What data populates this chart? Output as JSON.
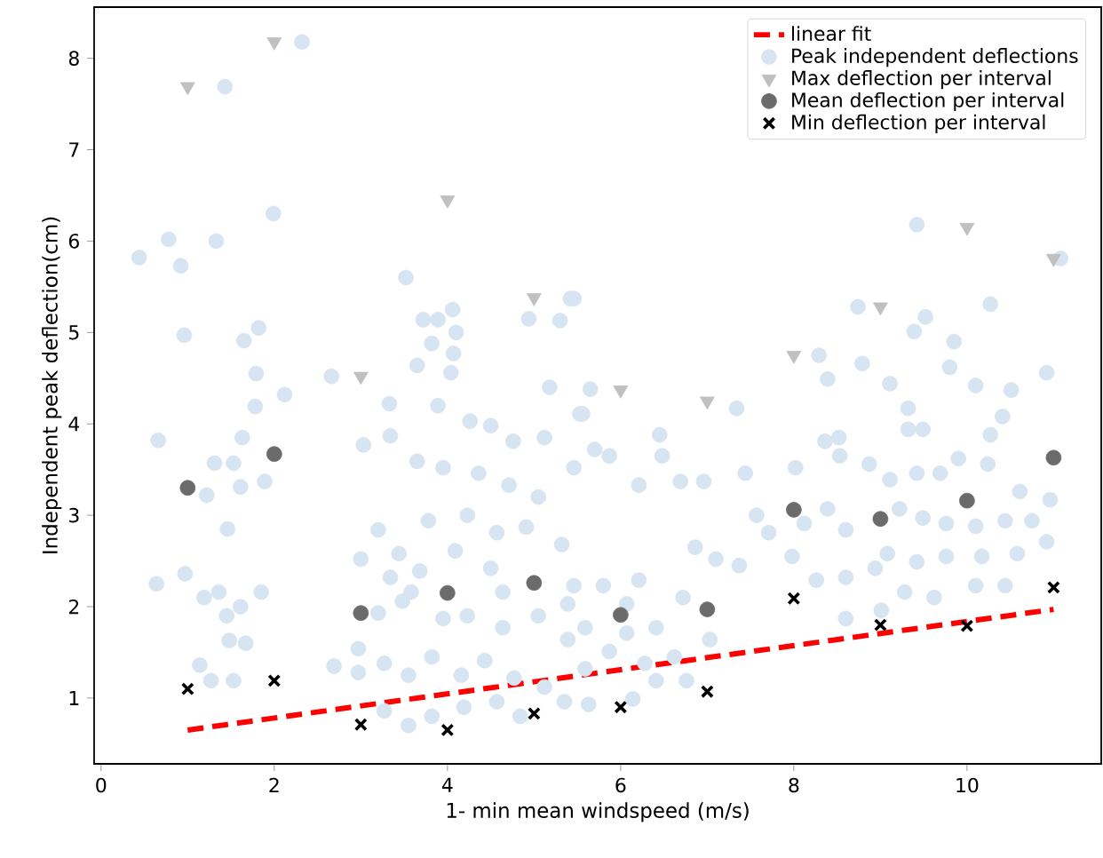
{
  "chart_data": {
    "type": "scatter",
    "xlabel": "1- min mean windspeed (m/s)",
    "ylabel": "Independent peak deflection(cm)",
    "xlim": [
      -0.08,
      11.55
    ],
    "ylim": [
      0.28,
      8.56
    ],
    "xticks": [
      0,
      2,
      4,
      6,
      8,
      10
    ],
    "yticks": [
      1,
      2,
      3,
      4,
      5,
      6,
      7,
      8
    ],
    "grid": false,
    "legend": "top right",
    "series": [
      {
        "name": "linear fit",
        "type": "line",
        "color": "#ff0000",
        "line_style": "dashed",
        "marker": "none",
        "x": [
          1,
          11
        ],
        "values": [
          0.65,
          1.97
        ]
      },
      {
        "name": "Peak independent deflections",
        "color": "#d6e5f1",
        "marker": "circle",
        "x": [
          0.44,
          0.78,
          0.92,
          1.33,
          1.43,
          2.32,
          1.99,
          0.96,
          1.65,
          1.82,
          1.79,
          1.78,
          2.12,
          1.63,
          0.66,
          1.31,
          1.53,
          1.61,
          1.89,
          1.22,
          1.46,
          0.64,
          0.97,
          1.19,
          1.36,
          1.45,
          1.61,
          1.85,
          1.48,
          1.67,
          1.14,
          1.27,
          1.53,
          2.66,
          3.03,
          3.33,
          3.34,
          3.52,
          3.72,
          3.89,
          4.06,
          3.82,
          4.1,
          3.65,
          4.07,
          4.04,
          3.89,
          5.18,
          4.94,
          5.3,
          5.42,
          4.26,
          4.5,
          4.76,
          5.12,
          5.53,
          3.65,
          3.95,
          4.36,
          4.71,
          5.05,
          3.78,
          4.23,
          4.57,
          4.91,
          5.32,
          3.2,
          3.44,
          3.0,
          3.34,
          3.68,
          4.09,
          4.5,
          5.46,
          3.2,
          3.48,
          3.95,
          4.23,
          4.64,
          5.05,
          5.39,
          2.69,
          2.97,
          2.97,
          3.27,
          3.55,
          3.82,
          4.16,
          4.43,
          4.77,
          5.12,
          3.27,
          3.55,
          3.82,
          4.19,
          4.57,
          4.84,
          5.35,
          3.58,
          4.64,
          5.46,
          5.65,
          5.56,
          5.7,
          5.87,
          6.45,
          6.48,
          5.46,
          6.21,
          6.69,
          6.96,
          7.34,
          7.44,
          8.02,
          8.36,
          8.29,
          8.39,
          8.79,
          8.74,
          9.11,
          9.39,
          9.52,
          9.85,
          9.8,
          10.1,
          10.27,
          9.42,
          10.51,
          10.41,
          10.92,
          11.08,
          9.32,
          9.49,
          9.32,
          8.52,
          8.53,
          8.87,
          9.11,
          9.42,
          9.69,
          9.9,
          10.24,
          10.27,
          10.61,
          10.96,
          10.75,
          10.44,
          10.1,
          9.76,
          9.49,
          9.22,
          8.6,
          8.39,
          8.12,
          7.98,
          7.71,
          7.57,
          9.08,
          8.94,
          8.6,
          8.26,
          9.42,
          9.76,
          10.17,
          10.58,
          10.92,
          9.28,
          9.62,
          10.1,
          10.44,
          8.6,
          9.01,
          7.1,
          7.37,
          6.86,
          7.03,
          6.41,
          6.72,
          6.21,
          5.8,
          5.39,
          5.87,
          6.28,
          6.62,
          6.76,
          6.14,
          6.41,
          5.59,
          5.63,
          6.07,
          5.59,
          6.07
        ],
        "values": [
          5.82,
          6.02,
          5.73,
          6.0,
          7.69,
          8.18,
          6.3,
          4.97,
          4.91,
          5.05,
          4.55,
          4.19,
          4.32,
          3.85,
          3.82,
          3.57,
          3.57,
          3.31,
          3.37,
          3.22,
          2.85,
          2.25,
          2.36,
          2.1,
          2.16,
          1.9,
          2.0,
          2.16,
          1.63,
          1.6,
          1.36,
          1.19,
          1.19,
          4.52,
          3.77,
          4.22,
          3.87,
          5.6,
          5.14,
          5.14,
          5.25,
          4.88,
          5.0,
          4.64,
          4.77,
          4.56,
          4.2,
          4.4,
          5.15,
          5.13,
          5.37,
          4.03,
          3.98,
          3.81,
          3.85,
          4.11,
          3.59,
          3.52,
          3.46,
          3.33,
          3.2,
          2.94,
          3.0,
          2.81,
          2.87,
          2.68,
          2.84,
          2.58,
          2.52,
          2.32,
          2.39,
          2.61,
          2.42,
          2.23,
          1.93,
          2.06,
          1.87,
          1.9,
          1.77,
          1.9,
          1.64,
          1.35,
          1.28,
          1.54,
          1.38,
          1.25,
          1.45,
          1.25,
          1.41,
          1.22,
          1.12,
          0.86,
          0.7,
          0.8,
          0.9,
          0.96,
          0.8,
          0.96,
          2.16,
          2.16,
          5.37,
          4.38,
          4.11,
          3.72,
          3.65,
          3.88,
          3.65,
          3.52,
          3.33,
          3.37,
          3.37,
          4.17,
          3.46,
          3.52,
          3.81,
          4.75,
          4.49,
          4.66,
          5.28,
          4.44,
          5.01,
          5.17,
          4.9,
          4.62,
          4.42,
          5.31,
          6.18,
          4.37,
          4.08,
          4.56,
          5.81,
          4.17,
          3.94,
          3.94,
          3.85,
          3.65,
          3.56,
          3.39,
          3.46,
          3.46,
          3.62,
          3.56,
          3.88,
          3.26,
          3.17,
          2.94,
          2.94,
          2.88,
          2.91,
          2.97,
          3.07,
          2.84,
          3.07,
          2.91,
          2.55,
          2.81,
          3.0,
          2.58,
          2.42,
          2.32,
          2.29,
          2.49,
          2.55,
          2.55,
          2.58,
          2.71,
          2.16,
          2.1,
          2.23,
          2.23,
          1.87,
          1.96,
          2.52,
          2.45,
          2.65,
          1.64,
          1.77,
          2.1,
          2.29,
          2.23,
          2.03,
          1.51,
          1.38,
          1.45,
          1.19,
          0.99,
          1.19,
          1.32,
          0.93,
          2.03,
          1.77,
          1.71
        ]
      },
      {
        "name": "Max deflection per interval",
        "color": "#c0c0c0",
        "marker": "triangle",
        "x": [
          1,
          2,
          3,
          4,
          5,
          6,
          7,
          8,
          9,
          10,
          11
        ],
        "values": [
          7.69,
          8.18,
          4.52,
          6.45,
          5.38,
          4.37,
          4.25,
          4.75,
          5.28,
          6.15,
          5.81
        ]
      },
      {
        "name": "Mean deflection per interval",
        "color": "#6b6b6b",
        "marker": "circle",
        "x": [
          1,
          2,
          3,
          4,
          5,
          6,
          7,
          8,
          9,
          10,
          11
        ],
        "values": [
          3.3,
          3.67,
          1.93,
          2.15,
          2.26,
          1.91,
          1.97,
          3.06,
          2.96,
          3.16,
          3.63
        ]
      },
      {
        "name": "Min deflection per interval",
        "color": "#000000",
        "marker": "cross",
        "x": [
          1,
          2,
          3,
          4,
          5,
          6,
          7,
          8,
          9,
          10,
          11
        ],
        "values": [
          1.1,
          1.19,
          0.71,
          0.65,
          0.83,
          0.9,
          1.07,
          2.09,
          1.8,
          1.79,
          2.21
        ]
      }
    ]
  }
}
